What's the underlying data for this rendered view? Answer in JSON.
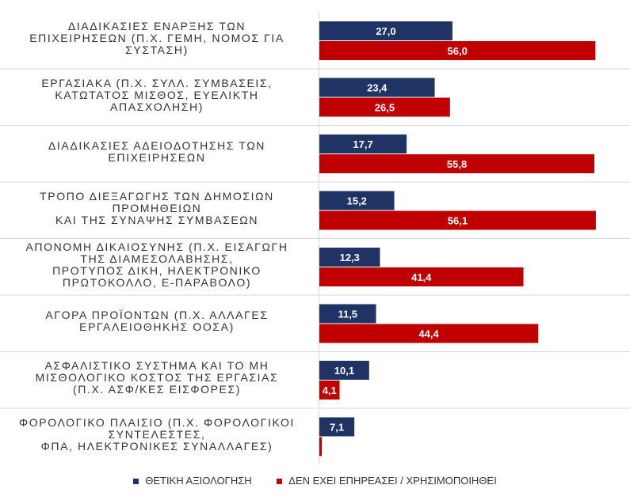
{
  "chart_data": {
    "type": "bar",
    "orientation": "horizontal",
    "categories": [
      "ΔΙΑΔΙΚΑΣΙΕΣ ΕΝΑΡΞΗΣ ΤΩΝ\nΕΠΙΧΕΙΡΗΣΕΩΝ (Π.Χ. ΓΕΜΗ, ΝΟΜΟΣ ΓΙΑ\nΣΥΣΤΑΣΗ)",
      "ΕΡΓΑΣΙΑΚΑ (Π.Χ. ΣΥΛΛ. ΣΥΜΒΑΣΕΙΣ,\nΚΑΤΩΤΑΤΟΣ ΜΙΣΘΟΣ, ΕΥΕΛΙΚΤΗ\nΑΠΑΣΧΟΛΗΣΗ)",
      "ΔΙΑΔΙΚΑΣΙΕΣ ΑΔΕΙΟΔΟΤΗΣΗΣ ΤΩΝ\nΕΠΙΧΕΙΡΗΣΕΩΝ",
      "ΤΡΟΠΟ ΔΙΕΞΑΓΩΓΗΣ ΤΩΝ ΔΗΜΟΣΙΩΝ\nΠΡΟΜΗΘΕΙΩΝ\nΚΑΙ ΤΗΣ ΣΥΝΑΨΗΣ ΣΥΜΒΑΣΕΩΝ",
      "ΑΠΟΝΟΜΗ ΔΙΚΑΙΟΣΥΝΗΣ  (Π.Χ. ΕΙΣΑΓΩΓΗ\nΤΗΣ ΔΙΑΜΕΣΟΛΑΒΗΣΗΣ,\nΠΡΟΤΥΠΟΣ ΔΙΚΗ, ΗΛΕΚΤΡΟΝΙΚΟ\nΠΡΩΤΟΚΟΛΛΟ, Ε-ΠΑΡΑΒΟΛΟ)",
      "ΑΓΟΡΑ ΠΡΟΪΟΝΤΩΝ (Π.Χ. ΑΛΛΑΓΕΣ\nΕΡΓΑΛΕΙΟΘΗΚΗΣ ΟΟΣΑ)",
      "ΑΣΦΑΛΙΣΤΙΚΟ ΣΥΣΤΗΜΑ ΚΑΙ ΤΟ ΜΗ\nΜΙΣΘΟΛΟΓΙΚΟ ΚΟΣΤΟΣ ΤΗΣ ΕΡΓΑΣΙΑΣ\n(Π.Χ. ΑΣΦ/ΚΕΣ ΕΙΣΦΟΡΕΣ)",
      "ΦΟΡΟΛΟΓΙΚΟ ΠΛΑΙΣΙΟ (Π.Χ. ΦΟΡΟΛΟΓΙΚΟΙ\nΣΥΝΤΕΛΕΣΤΕΣ,\nΦΠΑ, ΗΛΕΚΤΡΟΝΙΚΕΣ ΣΥΝΑΛΛΑΓΕΣ)"
    ],
    "series": [
      {
        "name": "ΘΕΤΙΚΗ ΑΞΙΟΛΟΓΗΣΗ",
        "color": "#1f3464",
        "values": [
          27.0,
          23.4,
          17.7,
          15.2,
          12.3,
          11.5,
          10.1,
          7.1
        ],
        "labels": [
          "27,0",
          "23,4",
          "17,7",
          "15,2",
          "12,3",
          "11,5",
          "10,1",
          "7,1"
        ]
      },
      {
        "name": "ΔΕΝ ΕΧΕΙ ΕΠΗΡΕΑΣΕΙ / ΧΡΗΣΙΜΟΠΟΙΗΘΕΙ",
        "color": "#c00000",
        "values": [
          56.0,
          26.5,
          55.8,
          56.1,
          41.4,
          44.4,
          4.1,
          0.5
        ],
        "labels": [
          "56,0",
          "26,5",
          "55,8",
          "56,1",
          "41,4",
          "44,4",
          "4,1",
          ""
        ]
      }
    ],
    "xlim": [
      0,
      60
    ],
    "grid": false,
    "legend": "bottom"
  }
}
